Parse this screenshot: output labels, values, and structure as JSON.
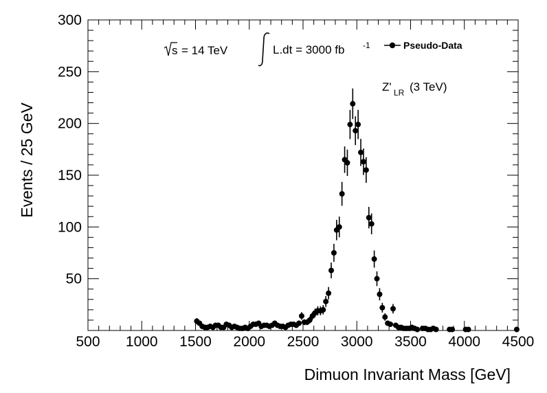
{
  "chart_data": {
    "type": "scatter",
    "xlabel": "Dimuon Invariant Mass [GeV]",
    "ylabel": "Events / 25 GeV",
    "xlim": [
      500,
      4500
    ],
    "ylim": [
      0,
      300
    ],
    "xticks": [
      "500",
      "1000",
      "1500",
      "2000",
      "2500",
      "3000",
      "3500",
      "4000",
      "4500"
    ],
    "yticks": [
      "50",
      "100",
      "150",
      "200",
      "250",
      "300"
    ],
    "grid": false,
    "annotations": {
      "sqrt_s": "s",
      "energy": "= 14 TeV",
      "lumi": "L.dt = 3000 fb",
      "lumi_exp": "-1",
      "model_main": "Z'",
      "model_sub": "LR",
      "model_rest": "(3 TeV)"
    },
    "legend": {
      "label": "Pseudo-Data",
      "position": "top-right"
    },
    "series": [
      {
        "name": "Pseudo-Data",
        "x": [
          1512,
          1537,
          1562,
          1587,
          1612,
          1637,
          1662,
          1687,
          1712,
          1737,
          1762,
          1787,
          1812,
          1837,
          1862,
          1887,
          1912,
          1937,
          1962,
          1987,
          2012,
          2037,
          2062,
          2087,
          2112,
          2137,
          2162,
          2187,
          2212,
          2237,
          2262,
          2287,
          2312,
          2337,
          2362,
          2387,
          2412,
          2437,
          2462,
          2487,
          2512,
          2537,
          2562,
          2587,
          2612,
          2637,
          2662,
          2687,
          2712,
          2737,
          2762,
          2787,
          2812,
          2837,
          2862,
          2887,
          2912,
          2937,
          2962,
          2987,
          3012,
          3037,
          3062,
          3087,
          3112,
          3137,
          3162,
          3187,
          3212,
          3237,
          3262,
          3287,
          3312,
          3337,
          3362,
          3387,
          3412,
          3437,
          3462,
          3487,
          3512,
          3537,
          3562,
          3612,
          3637,
          3662,
          3687,
          3712,
          3737,
          3862,
          3887,
          4012,
          4037,
          4487
        ],
        "y": [
          9,
          7,
          4,
          3,
          3,
          4,
          3,
          5,
          5,
          3,
          3,
          6,
          5,
          3,
          4,
          3,
          2,
          2,
          3,
          2,
          4,
          6,
          6,
          7,
          4,
          5,
          5,
          4,
          5,
          7,
          5,
          4,
          4,
          3,
          5,
          6,
          6,
          5,
          7,
          14,
          8,
          8,
          10,
          14,
          17,
          19,
          19,
          20,
          28,
          36,
          58,
          75,
          97,
          100,
          132,
          165,
          162,
          199,
          219,
          193,
          199,
          172,
          163,
          155,
          109,
          103,
          69,
          50,
          35,
          22,
          13,
          7,
          6,
          21,
          5,
          3,
          3,
          2,
          2,
          2,
          3,
          2,
          1,
          2,
          2,
          1,
          1,
          2,
          1,
          1,
          1,
          1,
          1,
          1
        ],
        "err": [
          3,
          2.6,
          2,
          1.7,
          1.7,
          2,
          1.7,
          2.2,
          2.2,
          1.7,
          1.7,
          2.4,
          2.2,
          1.7,
          2,
          1.7,
          1.4,
          1.4,
          1.7,
          1.4,
          2,
          2.4,
          2.4,
          2.6,
          2,
          2.2,
          2.2,
          2,
          2.2,
          2.6,
          2.2,
          2,
          2,
          1.7,
          2.2,
          2.4,
          2.4,
          2.2,
          2.6,
          3.7,
          2.8,
          2.8,
          3.2,
          3.7,
          4.1,
          4.4,
          4.4,
          4.5,
          5.3,
          6,
          7.6,
          8.7,
          9.8,
          10,
          11.5,
          12.8,
          12.7,
          14.1,
          14.8,
          13.9,
          14.1,
          13.1,
          12.8,
          12.4,
          10.4,
          10.1,
          8.3,
          7.1,
          5.9,
          4.7,
          3.6,
          2.6,
          2.4,
          4.6,
          2.2,
          1.7,
          1.7,
          1.4,
          1.4,
          1.4,
          1.7,
          1.4,
          1,
          1.4,
          1.4,
          1,
          1,
          1.4,
          1,
          1,
          1,
          1,
          1,
          1
        ]
      }
    ]
  }
}
